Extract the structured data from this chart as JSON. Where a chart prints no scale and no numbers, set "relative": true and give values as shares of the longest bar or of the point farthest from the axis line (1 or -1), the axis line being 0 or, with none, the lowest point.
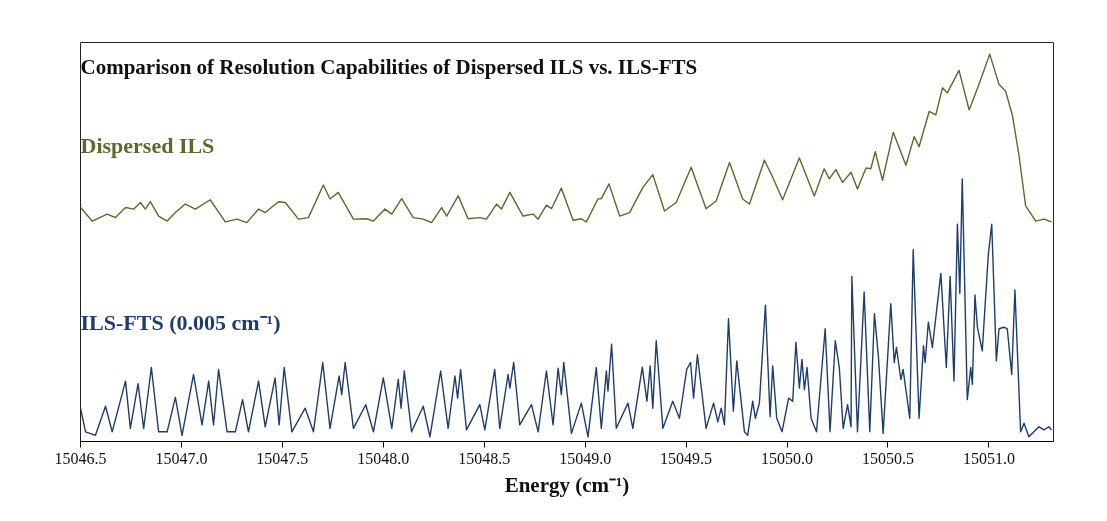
{
  "chart_data": {
    "type": "line",
    "title": "Comparison of Resolution Capabilities of Dispersed ILS vs. ILS-FTS",
    "xlabel": "Energy (cm⁻¹)",
    "relative": true,
    "grid": false,
    "xlim": [
      15046.5,
      15051.32
    ],
    "xticks": [
      {
        "value": 15046.5,
        "label": "15046.5"
      },
      {
        "value": 15047,
        "label": "15047.0"
      },
      {
        "value": 15047.5,
        "label": "15047.5"
      },
      {
        "value": 15048,
        "label": "15048.0"
      },
      {
        "value": 15048.5,
        "label": "15048.5"
      },
      {
        "value": 15049,
        "label": "15049.0"
      },
      {
        "value": 15049.5,
        "label": "15049.5"
      },
      {
        "value": 15050,
        "label": "15050.0"
      },
      {
        "value": 15050.5,
        "label": "15050.5"
      },
      {
        "value": 15051,
        "label": "15051.0"
      }
    ],
    "series": [
      {
        "name": "Dispersed ILS",
        "color": "#5b6a2c",
        "x": [
          15046.5,
          15046.558,
          15046.632,
          15046.673,
          15046.723,
          15046.764,
          15046.797,
          15046.821,
          15046.846,
          15046.887,
          15046.929,
          15046.97,
          15047.019,
          15047.069,
          15047.143,
          15047.217,
          15047.275,
          15047.324,
          15047.382,
          15047.415,
          15047.481,
          15047.514,
          15047.58,
          15047.629,
          15047.703,
          15047.736,
          15047.777,
          15047.852,
          15047.918,
          15047.951,
          15048.008,
          15048.042,
          15048.091,
          15048.148,
          15048.198,
          15048.239,
          15048.289,
          15048.314,
          15048.371,
          15048.42,
          15048.478,
          15048.511,
          15048.561,
          15048.585,
          15048.627,
          15048.692,
          15048.742,
          15048.767,
          15048.808,
          15048.833,
          15048.882,
          15048.94,
          15048.981,
          15049.006,
          15049.063,
          15049.08,
          15049.118,
          15049.171,
          15049.22,
          15049.286,
          15049.335,
          15049.393,
          15049.451,
          15049.525,
          15049.599,
          15049.649,
          15049.715,
          15049.78,
          15049.814,
          15049.888,
          15049.929,
          15049.978,
          15050.061,
          15050.135,
          15050.184,
          15050.209,
          15050.242,
          15050.275,
          15050.317,
          15050.349,
          15050.391,
          15050.415,
          15050.437,
          15050.473,
          15050.526,
          15050.589,
          15050.63,
          15050.654,
          15050.704,
          15050.737,
          15050.77,
          15050.794,
          15050.852,
          15050.902,
          15050.951,
          15051.004,
          15051.05,
          15051.083,
          15051.116,
          15051.149,
          15051.182,
          15051.232,
          15051.273,
          15051.31
        ],
        "values": [
          0.604,
          0.569,
          0.587,
          0.578,
          0.604,
          0.6,
          0.617,
          0.6,
          0.619,
          0.582,
          0.569,
          0.591,
          0.613,
          0.6,
          0.624,
          0.567,
          0.574,
          0.565,
          0.6,
          0.591,
          0.619,
          0.617,
          0.574,
          0.578,
          0.662,
          0.626,
          0.643,
          0.574,
          0.575,
          0.569,
          0.6,
          0.587,
          0.627,
          0.578,
          0.574,
          0.565,
          0.604,
          0.582,
          0.634,
          0.575,
          0.578,
          0.574,
          0.613,
          0.6,
          0.643,
          0.582,
          0.587,
          0.574,
          0.61,
          0.601,
          0.654,
          0.571,
          0.575,
          0.567,
          0.626,
          0.627,
          0.665,
          0.582,
          0.591,
          0.656,
          0.689,
          0.595,
          0.617,
          0.708,
          0.601,
          0.621,
          0.72,
          0.626,
          0.613,
          0.726,
          0.682,
          0.624,
          0.732,
          0.634,
          0.704,
          0.678,
          0.702,
          0.669,
          0.695,
          0.652,
          0.706,
          0.704,
          0.748,
          0.674,
          0.798,
          0.713,
          0.787,
          0.761,
          0.852,
          0.843,
          0.913,
          0.9,
          0.958,
          0.856,
          0.922,
          1.0,
          0.922,
          0.904,
          0.843,
          0.739,
          0.608,
          0.569,
          0.574,
          0.567
        ]
      },
      {
        "name": "ILS-FTS (0.005 cm⁻¹)",
        "color": "#1f3d6b",
        "x": [
          15046.5,
          15046.525,
          15046.574,
          15046.624,
          15046.657,
          15046.723,
          15046.747,
          15046.785,
          15046.813,
          15046.851,
          15046.887,
          15046.929,
          15046.97,
          15047.003,
          15047.06,
          15047.102,
          15047.135,
          15047.159,
          15047.184,
          15047.226,
          15047.267,
          15047.303,
          15047.332,
          15047.382,
          15047.415,
          15047.464,
          15047.484,
          15047.509,
          15047.547,
          15047.613,
          15047.654,
          15047.7,
          15047.736,
          15047.781,
          15047.794,
          15047.811,
          15047.852,
          15047.913,
          15047.951,
          15048.0,
          15048.042,
          15048.074,
          15048.088,
          15048.104,
          15048.14,
          15048.198,
          15048.231,
          15048.284,
          15048.321,
          15048.355,
          15048.368,
          15048.383,
          15048.412,
          15048.478,
          15048.503,
          15048.552,
          15048.577,
          15048.618,
          15048.627,
          15048.646,
          15048.676,
          15048.734,
          15048.767,
          15048.808,
          15048.841,
          15048.866,
          15048.882,
          15048.894,
          15048.932,
          15048.981,
          15049.014,
          15049.055,
          15049.08,
          15049.105,
          15049.113,
          15049.131,
          15049.154,
          15049.212,
          15049.236,
          15049.283,
          15049.306,
          15049.322,
          15049.335,
          15049.352,
          15049.385,
          15049.434,
          15049.467,
          15049.503,
          15049.522,
          15049.537,
          15049.556,
          15049.599,
          15049.636,
          15049.657,
          15049.674,
          15049.69,
          15049.71,
          15049.734,
          15049.751,
          15049.789,
          15049.805,
          15049.83,
          15049.843,
          15049.863,
          15049.893,
          15049.916,
          15049.929,
          15049.949,
          15049.975,
          15050.008,
          15050.028,
          15050.044,
          15050.061,
          15050.074,
          15050.086,
          15050.099,
          15050.119,
          15050.146,
          15050.189,
          15050.213,
          15050.239,
          15050.259,
          15050.278,
          15050.3,
          15050.317,
          15050.321,
          15050.349,
          15050.382,
          15050.41,
          15050.433,
          15050.453,
          15050.476,
          15050.514,
          15050.531,
          15050.542,
          15050.564,
          15050.575,
          15050.608,
          15050.625,
          15050.654,
          15050.676,
          15050.684,
          15050.7,
          15050.72,
          15050.762,
          15050.789,
          15050.808,
          15050.827,
          15050.844,
          15050.856,
          15050.868,
          15050.893,
          15050.91,
          15050.918,
          15050.931,
          15050.943,
          15050.967,
          15050.997,
          15051.014,
          15051.037,
          15051.05,
          15051.075,
          15051.091,
          15051.113,
          15051.129,
          15051.157,
          15051.174,
          15051.198,
          15051.248,
          15051.273,
          15051.297,
          15051.31
        ],
        "values": [
          0.086,
          0.025,
          0.016,
          0.091,
          0.025,
          0.156,
          0.034,
          0.149,
          0.034,
          0.191,
          0.025,
          0.025,
          0.114,
          0.016,
          0.173,
          0.043,
          0.156,
          0.043,
          0.186,
          0.025,
          0.025,
          0.108,
          0.025,
          0.156,
          0.038,
          0.164,
          0.043,
          0.191,
          0.025,
          0.086,
          0.025,
          0.204,
          0.034,
          0.169,
          0.121,
          0.204,
          0.034,
          0.095,
          0.025,
          0.164,
          0.034,
          0.16,
          0.086,
          0.182,
          0.025,
          0.091,
          0.012,
          0.182,
          0.034,
          0.169,
          0.112,
          0.186,
          0.03,
          0.095,
          0.03,
          0.186,
          0.034,
          0.173,
          0.138,
          0.204,
          0.043,
          0.095,
          0.025,
          0.182,
          0.043,
          0.189,
          0.121,
          0.204,
          0.021,
          0.099,
          0.012,
          0.191,
          0.034,
          0.182,
          0.13,
          0.251,
          0.034,
          0.099,
          0.034,
          0.192,
          0.104,
          0.195,
          0.086,
          0.26,
          0.034,
          0.104,
          0.06,
          0.186,
          0.204,
          0.112,
          0.224,
          0.034,
          0.099,
          0.051,
          0.086,
          0.043,
          0.317,
          0.078,
          0.208,
          0.025,
          0.016,
          0.104,
          0.06,
          0.099,
          0.352,
          0.064,
          0.195,
          0.06,
          0.025,
          0.112,
          0.104,
          0.256,
          0.138,
          0.212,
          0.134,
          0.191,
          0.06,
          0.025,
          0.291,
          0.025,
          0.26,
          0.191,
          0.034,
          0.095,
          0.038,
          0.426,
          0.025,
          0.386,
          0.025,
          0.33,
          0.217,
          0.021,
          0.356,
          0.204,
          0.243,
          0.16,
          0.186,
          0.06,
          0.495,
          0.06,
          0.247,
          0.204,
          0.308,
          0.243,
          0.434,
          0.191,
          0.426,
          0.156,
          0.561,
          0.382,
          0.678,
          0.108,
          0.191,
          0.147,
          0.378,
          0.295,
          0.234,
          0.482,
          0.561,
          0.208,
          0.291,
          0.295,
          0.291,
          0.173,
          0.391,
          0.025,
          0.047,
          0.012,
          0.038,
          0.03,
          0.038,
          0.03
        ]
      }
    ]
  }
}
